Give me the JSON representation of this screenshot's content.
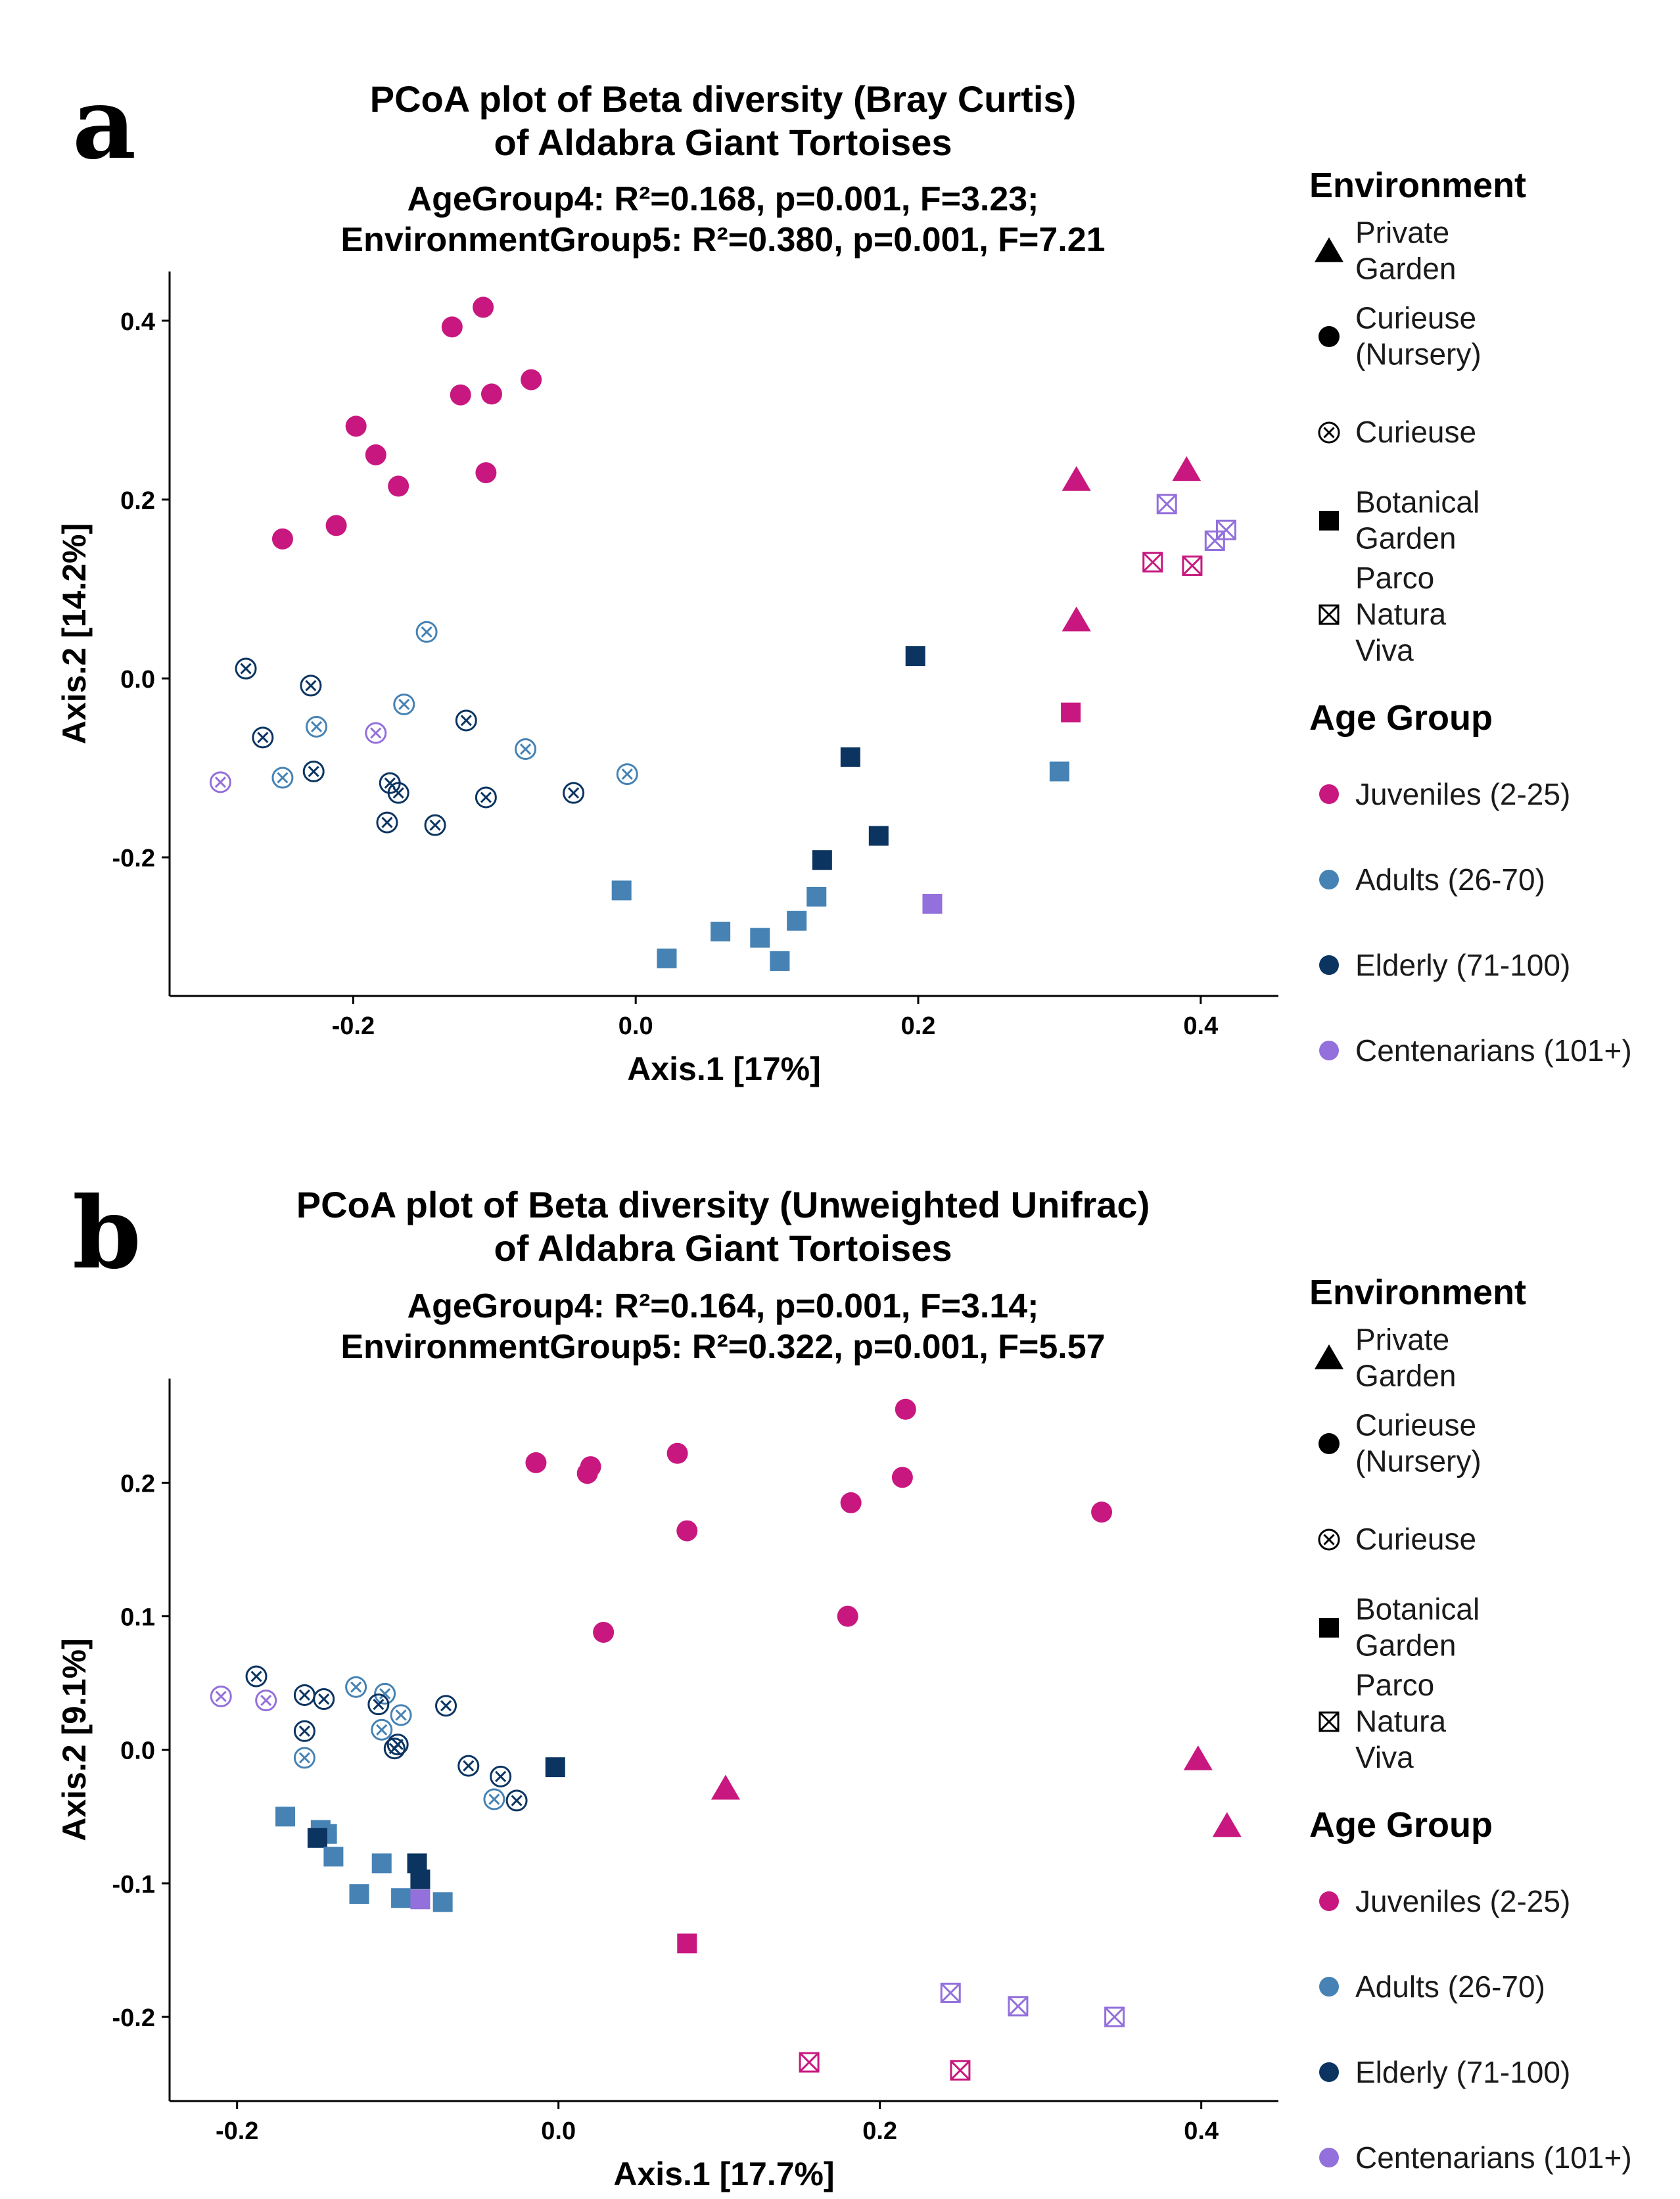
{
  "legend": {
    "environment_title": "Environment",
    "environment": [
      {
        "key": "pg",
        "shape": "triangle",
        "lines": [
          "Private",
          "Garden"
        ]
      },
      {
        "key": "cn",
        "shape": "circle",
        "lines": [
          "Curieuse",
          "(Nursery)"
        ]
      },
      {
        "key": "cu",
        "shape": "circlex",
        "lines": [
          "Curieuse"
        ]
      },
      {
        "key": "bg",
        "shape": "square",
        "lines": [
          "Botanical",
          "Garden"
        ]
      },
      {
        "key": "pn",
        "shape": "squarex",
        "lines": [
          "Parco",
          "Natura",
          "Viva"
        ]
      }
    ],
    "age_title": "Age Group",
    "age": [
      {
        "key": "J",
        "label": "Juveniles (2-25)",
        "color": "#C8187F"
      },
      {
        "key": "A",
        "label": "Adults (26-70)",
        "color": "#4682B4"
      },
      {
        "key": "E",
        "label": "Elderly (71-100)",
        "color": "#0B3461"
      },
      {
        "key": "C",
        "label": "Centenarians (101+)",
        "color": "#9370DB"
      }
    ]
  },
  "chart_data": [
    {
      "type": "scatter",
      "panel_label": "a",
      "title_lines": [
        "PCoA plot of Beta diversity (Bray Curtis)",
        "of Aldabra Giant Tortoises"
      ],
      "subtitle_lines": [
        "AgeGroup4: R²=0.168, p=0.001, F=3.23;",
        "EnvironmentGroup5: R²=0.380, p=0.001, F=7.21"
      ],
      "xlabel": "Axis.1   [17%]",
      "ylabel": "Axis.2   [14.2%]",
      "xlim": [
        -0.33,
        0.455
      ],
      "ylim": [
        -0.355,
        0.455
      ],
      "xticks": [
        {
          "v": -0.2,
          "label": "-0.2"
        },
        {
          "v": 0.0,
          "label": "0.0"
        },
        {
          "v": 0.2,
          "label": "0.2"
        },
        {
          "v": 0.4,
          "label": "0.4"
        }
      ],
      "yticks": [
        {
          "v": -0.2,
          "label": "-0.2"
        },
        {
          "v": 0.0,
          "label": "0.0"
        },
        {
          "v": 0.2,
          "label": "0.2"
        },
        {
          "v": 0.4,
          "label": "0.4"
        }
      ],
      "points": [
        {
          "x": -0.108,
          "y": 0.415,
          "env": "cn",
          "age": "J"
        },
        {
          "x": -0.13,
          "y": 0.393,
          "env": "cn",
          "age": "J"
        },
        {
          "x": -0.074,
          "y": 0.334,
          "env": "cn",
          "age": "J"
        },
        {
          "x": -0.124,
          "y": 0.317,
          "env": "cn",
          "age": "J"
        },
        {
          "x": -0.102,
          "y": 0.318,
          "env": "cn",
          "age": "J"
        },
        {
          "x": -0.198,
          "y": 0.282,
          "env": "cn",
          "age": "J"
        },
        {
          "x": -0.184,
          "y": 0.25,
          "env": "cn",
          "age": "J"
        },
        {
          "x": -0.106,
          "y": 0.23,
          "env": "cn",
          "age": "J"
        },
        {
          "x": -0.168,
          "y": 0.215,
          "env": "cn",
          "age": "J"
        },
        {
          "x": -0.212,
          "y": 0.171,
          "env": "cn",
          "age": "J"
        },
        {
          "x": -0.25,
          "y": 0.156,
          "env": "cn",
          "age": "J"
        },
        {
          "x": -0.276,
          "y": 0.011,
          "env": "cu",
          "age": "E"
        },
        {
          "x": -0.23,
          "y": -0.008,
          "env": "cu",
          "age": "E"
        },
        {
          "x": -0.264,
          "y": -0.066,
          "env": "cu",
          "age": "E"
        },
        {
          "x": -0.226,
          "y": -0.054,
          "env": "cu",
          "age": "A"
        },
        {
          "x": -0.148,
          "y": 0.052,
          "env": "cu",
          "age": "A"
        },
        {
          "x": -0.164,
          "y": -0.029,
          "env": "cu",
          "age": "A"
        },
        {
          "x": -0.12,
          "y": -0.047,
          "env": "cu",
          "age": "E"
        },
        {
          "x": -0.078,
          "y": -0.079,
          "env": "cu",
          "age": "A"
        },
        {
          "x": -0.006,
          "y": -0.107,
          "env": "cu",
          "age": "A"
        },
        {
          "x": -0.184,
          "y": -0.061,
          "env": "cu",
          "age": "C"
        },
        {
          "x": -0.294,
          "y": -0.116,
          "env": "cu",
          "age": "C"
        },
        {
          "x": -0.25,
          "y": -0.111,
          "env": "cu",
          "age": "A"
        },
        {
          "x": -0.228,
          "y": -0.104,
          "env": "cu",
          "age": "E"
        },
        {
          "x": -0.174,
          "y": -0.117,
          "env": "cu",
          "age": "E"
        },
        {
          "x": -0.168,
          "y": -0.128,
          "env": "cu",
          "age": "E"
        },
        {
          "x": -0.106,
          "y": -0.133,
          "env": "cu",
          "age": "E"
        },
        {
          "x": -0.044,
          "y": -0.128,
          "env": "cu",
          "age": "E"
        },
        {
          "x": -0.176,
          "y": -0.161,
          "env": "cu",
          "age": "E"
        },
        {
          "x": -0.142,
          "y": -0.164,
          "env": "cu",
          "age": "E"
        },
        {
          "x": 0.198,
          "y": 0.025,
          "env": "bg",
          "age": "E"
        },
        {
          "x": 0.152,
          "y": -0.088,
          "env": "bg",
          "age": "E"
        },
        {
          "x": 0.172,
          "y": -0.176,
          "env": "bg",
          "age": "E"
        },
        {
          "x": 0.132,
          "y": -0.203,
          "env": "bg",
          "age": "E"
        },
        {
          "x": -0.01,
          "y": -0.237,
          "env": "bg",
          "age": "A"
        },
        {
          "x": 0.128,
          "y": -0.244,
          "env": "bg",
          "age": "A"
        },
        {
          "x": 0.114,
          "y": -0.271,
          "env": "bg",
          "age": "A"
        },
        {
          "x": 0.06,
          "y": -0.283,
          "env": "bg",
          "age": "A"
        },
        {
          "x": 0.088,
          "y": -0.29,
          "env": "bg",
          "age": "A"
        },
        {
          "x": 0.022,
          "y": -0.313,
          "env": "bg",
          "age": "A"
        },
        {
          "x": 0.102,
          "y": -0.316,
          "env": "bg",
          "age": "A"
        },
        {
          "x": 0.3,
          "y": -0.104,
          "env": "bg",
          "age": "A"
        },
        {
          "x": 0.21,
          "y": -0.252,
          "env": "bg",
          "age": "C"
        },
        {
          "x": 0.308,
          "y": -0.038,
          "env": "bg",
          "age": "J"
        },
        {
          "x": 0.312,
          "y": 0.222,
          "env": "pg",
          "age": "J"
        },
        {
          "x": 0.39,
          "y": 0.233,
          "env": "pg",
          "age": "J"
        },
        {
          "x": 0.312,
          "y": 0.065,
          "env": "pg",
          "age": "J"
        },
        {
          "x": 0.376,
          "y": 0.195,
          "env": "pn",
          "age": "C"
        },
        {
          "x": 0.418,
          "y": 0.166,
          "env": "pn",
          "age": "C"
        },
        {
          "x": 0.41,
          "y": 0.154,
          "env": "pn",
          "age": "C"
        },
        {
          "x": 0.366,
          "y": 0.13,
          "env": "pn",
          "age": "J"
        },
        {
          "x": 0.394,
          "y": 0.126,
          "env": "pn",
          "age": "J"
        }
      ]
    },
    {
      "type": "scatter",
      "panel_label": "b",
      "title_lines": [
        "PCoA plot of Beta diversity (Unweighted Unifrac)",
        "of Aldabra Giant Tortoises"
      ],
      "subtitle_lines": [
        "AgeGroup4: R²=0.164, p=0.001, F=3.14;",
        "EnvironmentGroup5: R²=0.322, p=0.001, F=5.57"
      ],
      "xlabel": "Axis.1   [17.7%]",
      "ylabel": "Axis.2   [9.1%]",
      "xlim": [
        -0.242,
        0.448
      ],
      "ylim": [
        -0.263,
        0.278
      ],
      "xticks": [
        {
          "v": -0.2,
          "label": "-0.2"
        },
        {
          "v": 0.0,
          "label": "0.0"
        },
        {
          "v": 0.2,
          "label": "0.2"
        },
        {
          "v": 0.4,
          "label": "0.4"
        }
      ],
      "yticks": [
        {
          "v": -0.2,
          "label": "-0.2"
        },
        {
          "v": -0.1,
          "label": "-0.1"
        },
        {
          "v": 0.0,
          "label": "0.0"
        },
        {
          "v": 0.1,
          "label": "0.1"
        },
        {
          "v": 0.2,
          "label": "0.2"
        }
      ],
      "points": [
        {
          "x": 0.216,
          "y": 0.255,
          "env": "cn",
          "age": "J"
        },
        {
          "x": 0.074,
          "y": 0.222,
          "env": "cn",
          "age": "J"
        },
        {
          "x": -0.014,
          "y": 0.215,
          "env": "cn",
          "age": "J"
        },
        {
          "x": 0.02,
          "y": 0.212,
          "env": "cn",
          "age": "J"
        },
        {
          "x": 0.018,
          "y": 0.207,
          "env": "cn",
          "age": "J"
        },
        {
          "x": 0.214,
          "y": 0.204,
          "env": "cn",
          "age": "J"
        },
        {
          "x": 0.182,
          "y": 0.185,
          "env": "cn",
          "age": "J"
        },
        {
          "x": 0.338,
          "y": 0.178,
          "env": "cn",
          "age": "J"
        },
        {
          "x": 0.08,
          "y": 0.164,
          "env": "cn",
          "age": "J"
        },
        {
          "x": 0.18,
          "y": 0.1,
          "env": "cn",
          "age": "J"
        },
        {
          "x": 0.028,
          "y": 0.088,
          "env": "cn",
          "age": "J"
        },
        {
          "x": -0.21,
          "y": 0.04,
          "env": "cu",
          "age": "C"
        },
        {
          "x": -0.182,
          "y": 0.037,
          "env": "cu",
          "age": "C"
        },
        {
          "x": -0.188,
          "y": 0.055,
          "env": "cu",
          "age": "E"
        },
        {
          "x": -0.126,
          "y": 0.047,
          "env": "cu",
          "age": "A"
        },
        {
          "x": -0.108,
          "y": 0.042,
          "env": "cu",
          "age": "A"
        },
        {
          "x": -0.158,
          "y": 0.041,
          "env": "cu",
          "age": "E"
        },
        {
          "x": -0.146,
          "y": 0.038,
          "env": "cu",
          "age": "E"
        },
        {
          "x": -0.112,
          "y": 0.034,
          "env": "cu",
          "age": "E"
        },
        {
          "x": -0.07,
          "y": 0.033,
          "env": "cu",
          "age": "E"
        },
        {
          "x": -0.098,
          "y": 0.026,
          "env": "cu",
          "age": "A"
        },
        {
          "x": -0.158,
          "y": 0.014,
          "env": "cu",
          "age": "E"
        },
        {
          "x": -0.11,
          "y": 0.015,
          "env": "cu",
          "age": "A"
        },
        {
          "x": -0.1,
          "y": 0.004,
          "env": "cu",
          "age": "E"
        },
        {
          "x": -0.102,
          "y": 0.001,
          "env": "cu",
          "age": "E"
        },
        {
          "x": -0.158,
          "y": -0.006,
          "env": "cu",
          "age": "A"
        },
        {
          "x": -0.056,
          "y": -0.012,
          "env": "cu",
          "age": "E"
        },
        {
          "x": -0.036,
          "y": -0.02,
          "env": "cu",
          "age": "E"
        },
        {
          "x": -0.04,
          "y": -0.037,
          "env": "cu",
          "age": "A"
        },
        {
          "x": -0.026,
          "y": -0.038,
          "env": "cu",
          "age": "E"
        },
        {
          "x": -0.002,
          "y": -0.013,
          "env": "bg",
          "age": "E"
        },
        {
          "x": -0.17,
          "y": -0.05,
          "env": "bg",
          "age": "A"
        },
        {
          "x": -0.148,
          "y": -0.06,
          "env": "bg",
          "age": "A"
        },
        {
          "x": -0.144,
          "y": -0.063,
          "env": "bg",
          "age": "A"
        },
        {
          "x": -0.15,
          "y": -0.066,
          "env": "bg",
          "age": "E"
        },
        {
          "x": -0.14,
          "y": -0.08,
          "env": "bg",
          "age": "A"
        },
        {
          "x": -0.11,
          "y": -0.085,
          "env": "bg",
          "age": "A"
        },
        {
          "x": -0.088,
          "y": -0.085,
          "env": "bg",
          "age": "E"
        },
        {
          "x": -0.086,
          "y": -0.097,
          "env": "bg",
          "age": "E"
        },
        {
          "x": -0.124,
          "y": -0.108,
          "env": "bg",
          "age": "A"
        },
        {
          "x": -0.098,
          "y": -0.111,
          "env": "bg",
          "age": "A"
        },
        {
          "x": -0.072,
          "y": -0.114,
          "env": "bg",
          "age": "A"
        },
        {
          "x": -0.086,
          "y": -0.112,
          "env": "bg",
          "age": "C"
        },
        {
          "x": 0.08,
          "y": -0.145,
          "env": "bg",
          "age": "J"
        },
        {
          "x": 0.104,
          "y": -0.029,
          "env": "pg",
          "age": "J"
        },
        {
          "x": 0.398,
          "y": -0.007,
          "env": "pg",
          "age": "J"
        },
        {
          "x": 0.416,
          "y": -0.057,
          "env": "pg",
          "age": "J"
        },
        {
          "x": 0.244,
          "y": -0.182,
          "env": "pn",
          "age": "C"
        },
        {
          "x": 0.286,
          "y": -0.192,
          "env": "pn",
          "age": "C"
        },
        {
          "x": 0.346,
          "y": -0.2,
          "env": "pn",
          "age": "C"
        },
        {
          "x": 0.156,
          "y": -0.234,
          "env": "pn",
          "age": "J"
        },
        {
          "x": 0.25,
          "y": -0.24,
          "env": "pn",
          "age": "J"
        }
      ]
    }
  ]
}
